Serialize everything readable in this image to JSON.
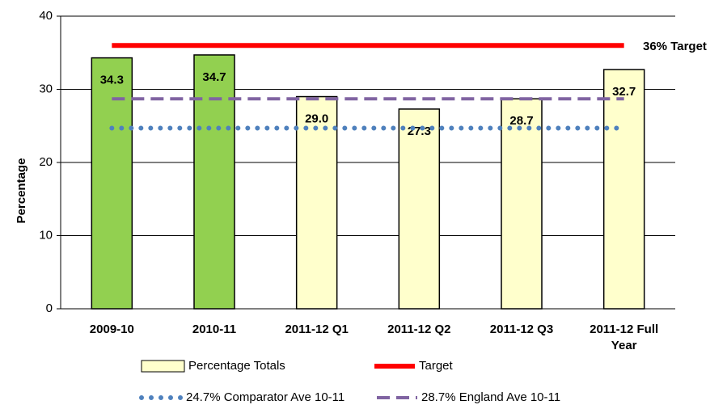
{
  "chart_data": {
    "type": "bar",
    "ylabel": "Percentage",
    "categories": [
      "2009-10",
      "2010-11",
      "2011-12 Q1",
      "2011-12 Q2",
      "2011-12 Q3",
      "2011-12 Full Year"
    ],
    "series": [
      {
        "name": "Percentage Totals",
        "type": "bar",
        "color": "#ffffcc",
        "colors": [
          "#92d050",
          "#92d050",
          "#ffffcc",
          "#ffffcc",
          "#ffffcc",
          "#ffffcc"
        ],
        "values": [
          34.3,
          34.7,
          29.0,
          27.3,
          28.7,
          32.7
        ],
        "value_labels": [
          "34.3",
          "34.7",
          "29.0",
          "27.3",
          "28.7",
          "32.7"
        ]
      },
      {
        "name": "Target",
        "type": "line",
        "style": "solid",
        "color": "#ff0000",
        "values": [
          36,
          36,
          36,
          36,
          36,
          36
        ]
      },
      {
        "name": "24.7% Comparator Ave 10-11",
        "type": "line",
        "style": "dotted",
        "color": "#4f81bd",
        "values": [
          24.7,
          24.7,
          24.7,
          24.7,
          24.7,
          24.7
        ]
      },
      {
        "name": "28.7% England Ave 10-11",
        "type": "line",
        "style": "dashed",
        "color": "#8064a2",
        "values": [
          28.7,
          28.7,
          28.7,
          28.7,
          28.7,
          28.7
        ]
      }
    ],
    "annotations": [
      "36% Target"
    ],
    "ylim": [
      0,
      40
    ],
    "yticks": [
      0,
      10,
      20,
      30,
      40
    ],
    "grid": true,
    "legend": "bottom"
  }
}
